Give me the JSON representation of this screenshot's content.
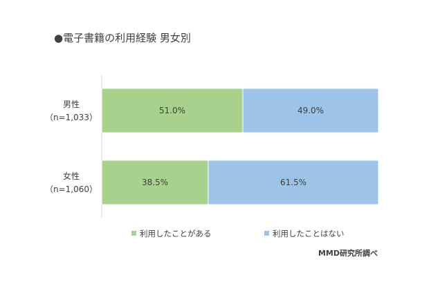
{
  "chart_data": {
    "type": "bar",
    "orientation": "horizontal",
    "stacked": "percent",
    "title": "●電子書籍の利用経験 男女別",
    "categories": [
      {
        "label": "男性",
        "sublabel": "（n=1,033）"
      },
      {
        "label": "女性",
        "sublabel": "（n=1,060）"
      }
    ],
    "series": [
      {
        "name": "利用したことがある",
        "color": "#a9d18e",
        "values": [
          51.0,
          38.5
        ],
        "labels": [
          "51.0%",
          "38.5%"
        ]
      },
      {
        "name": "利用したことはない",
        "color": "#9dc3e6",
        "values": [
          49.0,
          61.5
        ],
        "labels": [
          "49.0%",
          "61.5%"
        ]
      }
    ],
    "xlim": [
      0,
      100
    ],
    "legend": "bottom",
    "grid": false,
    "source": "MMD研究所調べ"
  }
}
